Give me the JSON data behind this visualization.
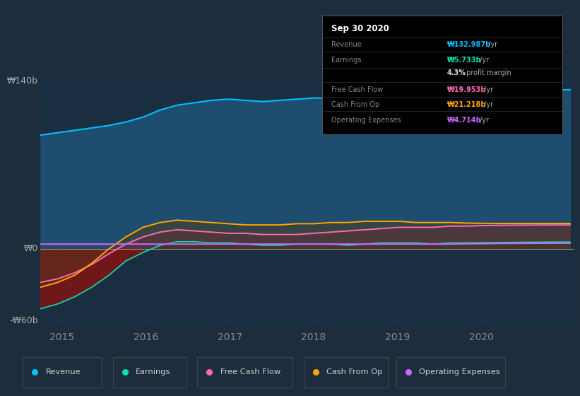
{
  "bg_color": "#1e2d3d",
  "plot_bg_color": "#1a2e42",
  "ylim": [
    -65,
    145
  ],
  "xlim": [
    2014.75,
    2021.1
  ],
  "xticks": [
    2015,
    2016,
    2017,
    2018,
    2019,
    2020
  ],
  "legend": [
    "Revenue",
    "Earnings",
    "Free Cash Flow",
    "Cash From Op",
    "Operating Expenses"
  ],
  "legend_colors": [
    "#00bfff",
    "#00e5b0",
    "#ff69b4",
    "#ffa500",
    "#cc66ff"
  ],
  "revenue_color": "#00bfff",
  "revenue_fill": "#1e4d70",
  "earnings_color": "#00e5b0",
  "fcf_color": "#ff69b4",
  "cashfromop_color": "#ffa500",
  "opex_color": "#cc66ff",
  "grid_color": "#2a4a6a",
  "ylabel_top": "₩140b",
  "ylabel_zero": "₩0",
  "ylabel_bot": "-₩60b",
  "revenue": [
    95,
    97,
    99,
    101,
    103,
    106,
    110,
    116,
    120,
    122,
    124,
    125,
    124,
    123,
    124,
    125,
    126,
    126,
    125,
    126,
    127,
    127,
    126,
    126,
    127,
    128,
    129,
    130,
    131,
    132,
    132.5,
    132.987
  ],
  "earnings": [
    -50,
    -46,
    -40,
    -32,
    -22,
    -10,
    -3,
    3,
    6,
    6,
    5,
    5,
    4,
    3,
    3,
    4,
    4,
    4,
    3,
    4,
    5,
    5,
    5,
    4,
    5,
    5,
    5.2,
    5.4,
    5.5,
    5.6,
    5.7,
    5.733
  ],
  "fcf": [
    -28,
    -25,
    -20,
    -13,
    -4,
    4,
    10,
    14,
    16,
    15,
    14,
    13,
    13,
    12,
    12,
    12,
    13,
    14,
    15,
    16,
    17,
    18,
    18,
    18,
    19,
    19,
    19.5,
    19.7,
    19.8,
    19.9,
    19.95,
    19.953
  ],
  "cashfromop": [
    -32,
    -28,
    -22,
    -12,
    0,
    10,
    18,
    22,
    24,
    23,
    22,
    21,
    20,
    20,
    20,
    21,
    21,
    22,
    22,
    23,
    23,
    23,
    22,
    22,
    22,
    21.5,
    21.3,
    21.2,
    21.2,
    21.2,
    21.2,
    21.218
  ],
  "opex": [
    4,
    4,
    4,
    4,
    4,
    4,
    4,
    4,
    4,
    4,
    4,
    4,
    4,
    4,
    4,
    4,
    4,
    4,
    4,
    4,
    4,
    4,
    4,
    4,
    4,
    4.2,
    4.3,
    4.5,
    4.6,
    4.65,
    4.7,
    4.714
  ]
}
